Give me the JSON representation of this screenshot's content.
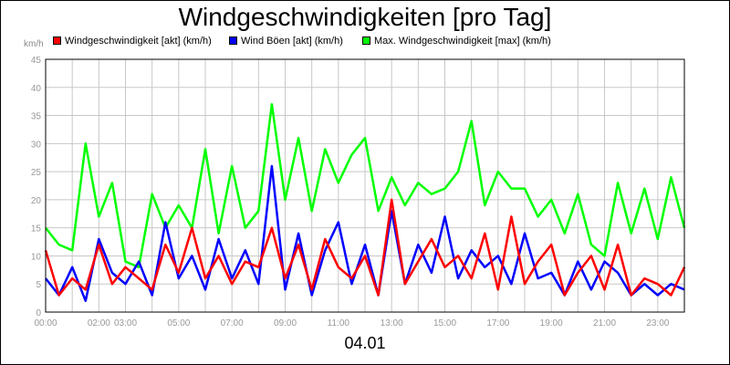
{
  "chart_data": {
    "type": "line",
    "title": "Windgeschwindigkeiten [pro Tag]",
    "ylabel": "km/h",
    "xlabel": "04.01",
    "ylim": [
      0,
      45
    ],
    "xlim": [
      0,
      24
    ],
    "y_ticks": [
      "0",
      "5",
      "10",
      "15",
      "20",
      "25",
      "30",
      "35",
      "40",
      "45"
    ],
    "x_ticks": [
      {
        "label": "00:00",
        "hour": 0
      },
      {
        "label": "02:00",
        "hour": 2
      },
      {
        "label": "03:00",
        "hour": 3
      },
      {
        "label": "05:00",
        "hour": 5
      },
      {
        "label": "07:00",
        "hour": 7
      },
      {
        "label": "09:00",
        "hour": 9
      },
      {
        "label": "11:00",
        "hour": 11
      },
      {
        "label": "13:00",
        "hour": 13
      },
      {
        "label": "15:00",
        "hour": 15
      },
      {
        "label": "17:00",
        "hour": 17
      },
      {
        "label": "19:00",
        "hour": 19
      },
      {
        "label": "21:00",
        "hour": 21
      },
      {
        "label": "23:00",
        "hour": 23
      }
    ],
    "x": [
      0,
      0.5,
      1,
      1.5,
      2,
      2.5,
      3,
      3.5,
      4,
      4.5,
      5,
      5.5,
      6,
      6.5,
      7,
      7.5,
      8,
      8.5,
      9,
      9.5,
      10,
      10.5,
      11,
      11.5,
      12,
      12.5,
      13,
      13.5,
      14,
      14.5,
      15,
      15.5,
      16,
      16.5,
      17,
      17.5,
      18,
      18.5,
      19,
      19.5,
      20,
      20.5,
      21,
      21.5,
      22,
      22.5,
      23,
      23.5,
      24
    ],
    "series": [
      {
        "name": "Windgeschwindigkeit [akt] (km/h)",
        "color": "#ff0000",
        "values": [
          11,
          3,
          6,
          4,
          12,
          5,
          8,
          6,
          4,
          12,
          7,
          15,
          6,
          10,
          5,
          9,
          8,
          15,
          6,
          12,
          4,
          13,
          8,
          6,
          10,
          3,
          20,
          5,
          9,
          13,
          8,
          10,
          6,
          14,
          4,
          17,
          5,
          9,
          12,
          3,
          7,
          10,
          4,
          12,
          3,
          6,
          5,
          3,
          8
        ]
      },
      {
        "name": "Wind Böen [akt] (km/h)",
        "color": "#0000ff",
        "values": [
          6,
          3,
          8,
          2,
          13,
          7,
          5,
          9,
          3,
          16,
          6,
          10,
          4,
          13,
          6,
          11,
          5,
          26,
          4,
          14,
          3,
          11,
          16,
          5,
          12,
          3,
          18,
          5,
          12,
          7,
          17,
          6,
          11,
          8,
          10,
          5,
          14,
          6,
          7,
          3,
          9,
          4,
          9,
          7,
          3,
          5,
          3,
          5,
          4
        ]
      },
      {
        "name": "Max. Windgeschwindigkeit [max] (km/h)",
        "color": "#00ff00",
        "values": [
          15,
          12,
          11,
          30,
          17,
          23,
          9,
          8,
          21,
          15,
          19,
          15,
          29,
          14,
          26,
          15,
          18,
          37,
          20,
          31,
          18,
          29,
          23,
          28,
          31,
          18,
          24,
          19,
          23,
          21,
          22,
          25,
          34,
          19,
          25,
          22,
          22,
          17,
          20,
          14,
          21,
          12,
          10,
          23,
          14,
          22,
          13,
          24,
          15
        ]
      }
    ]
  }
}
